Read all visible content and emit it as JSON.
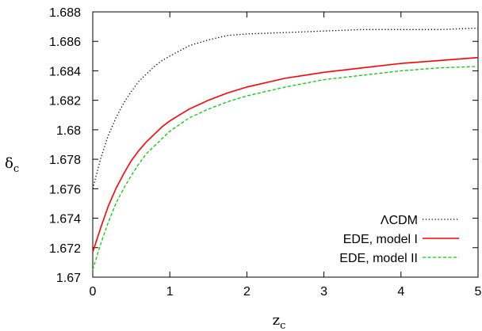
{
  "chart_data": {
    "type": "line",
    "xlabel": "z",
    "xlabel_sub": "c",
    "ylabel": "δ",
    "ylabel_sub": "c",
    "xlim": [
      0,
      5
    ],
    "ylim": [
      1.67,
      1.688
    ],
    "x_ticks": [
      "0",
      "1",
      "2",
      "3",
      "4",
      "5"
    ],
    "y_ticks": [
      "1.67",
      "1.672",
      "1.674",
      "1.676",
      "1.678",
      "1.68",
      "1.682",
      "1.684",
      "1.686",
      "1.688"
    ],
    "grid": false,
    "legend_position": "bottom-right",
    "series": [
      {
        "name": "ΛCDM",
        "color": "#000000",
        "style": "dotted",
        "x": [
          0,
          0.1,
          0.2,
          0.3,
          0.4,
          0.5,
          0.6,
          0.7,
          0.8,
          0.9,
          1.0,
          1.25,
          1.5,
          1.75,
          2.0,
          2.5,
          3.0,
          3.5,
          4.0,
          4.5,
          5.0
        ],
        "y": [
          1.676,
          1.678,
          1.6796,
          1.6808,
          1.6818,
          1.6826,
          1.6833,
          1.6838,
          1.6843,
          1.6847,
          1.685,
          1.6857,
          1.6861,
          1.6864,
          1.6865,
          1.6866,
          1.6867,
          1.6868,
          1.6868,
          1.6868,
          1.6869
        ]
      },
      {
        "name": "EDE, model I",
        "color": "#ff0000",
        "style": "solid",
        "x": [
          0,
          0.1,
          0.2,
          0.3,
          0.4,
          0.5,
          0.6,
          0.7,
          0.8,
          0.9,
          1.0,
          1.25,
          1.5,
          1.75,
          2.0,
          2.5,
          3.0,
          3.5,
          4.0,
          4.5,
          5.0
        ],
        "y": [
          1.6717,
          1.6733,
          1.6748,
          1.676,
          1.677,
          1.6779,
          1.6786,
          1.6792,
          1.6797,
          1.6802,
          1.6806,
          1.6814,
          1.682,
          1.6825,
          1.6829,
          1.6835,
          1.6839,
          1.6842,
          1.6845,
          1.6847,
          1.6849
        ]
      },
      {
        "name": "EDE, model II",
        "color": "#00cc00",
        "style": "dashed",
        "x": [
          0,
          0.1,
          0.2,
          0.3,
          0.4,
          0.5,
          0.6,
          0.7,
          0.8,
          0.9,
          1.0,
          1.25,
          1.5,
          1.75,
          2.0,
          2.5,
          3.0,
          3.5,
          4.0,
          4.5,
          5.0
        ],
        "y": [
          1.6705,
          1.6722,
          1.6737,
          1.675,
          1.676,
          1.6769,
          1.6777,
          1.6784,
          1.6789,
          1.6794,
          1.6799,
          1.6808,
          1.6814,
          1.6819,
          1.6823,
          1.6829,
          1.6834,
          1.6837,
          1.684,
          1.6842,
          1.6843
        ]
      }
    ]
  }
}
